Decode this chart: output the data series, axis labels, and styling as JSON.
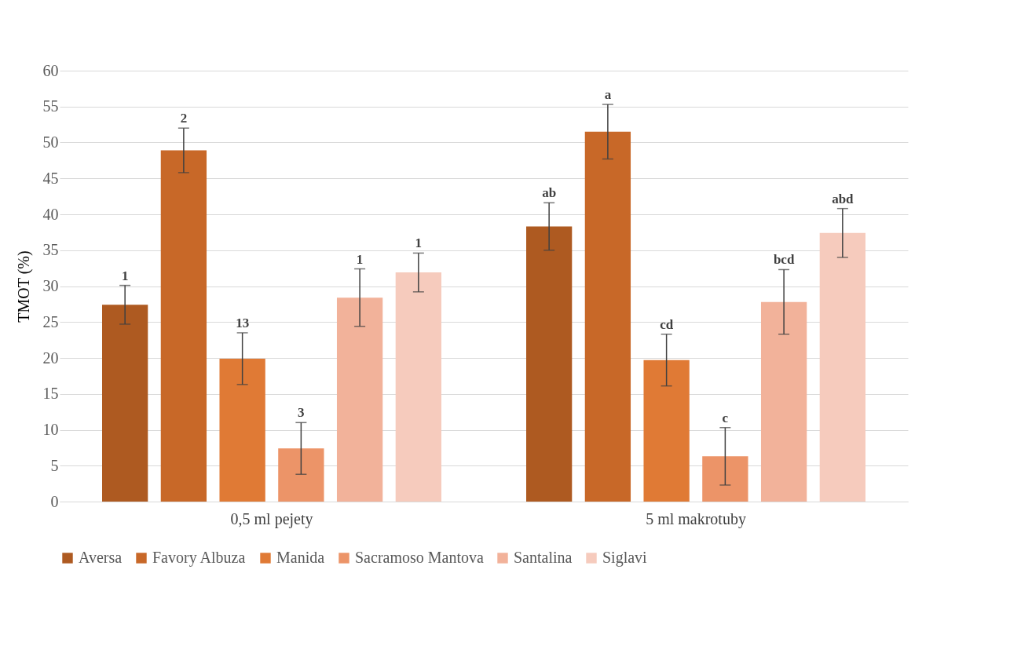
{
  "chart_data": {
    "type": "bar",
    "ylabel": "TMOT (%)",
    "categories": [
      "0,5 ml pejety",
      "5 ml makrotuby"
    ],
    "ylim": [
      0,
      60
    ],
    "yticks": [
      0,
      5,
      10,
      15,
      20,
      25,
      30,
      35,
      40,
      45,
      50,
      55,
      60
    ],
    "grid": "y",
    "legend": "bottom",
    "series": [
      {
        "name": "Aversa",
        "color": "#ae5a21",
        "values": [
          27.4,
          38.3
        ],
        "errors": [
          2.7,
          3.3
        ]
      },
      {
        "name": "Favory Albuza",
        "color": "#c86828",
        "values": [
          48.9,
          51.5
        ],
        "errors": [
          3.1,
          3.8
        ]
      },
      {
        "name": "Manida",
        "color": "#e07a35",
        "values": [
          19.9,
          19.7
        ],
        "errors": [
          3.6,
          3.6
        ]
      },
      {
        "name": "Sacramoso Mantova",
        "color": "#ec9468",
        "values": [
          7.4,
          6.3
        ],
        "errors": [
          3.6,
          4.0
        ]
      },
      {
        "name": "Santalina",
        "color": "#f2b29a",
        "values": [
          28.4,
          27.8
        ],
        "errors": [
          4.0,
          4.5
        ]
      },
      {
        "name": "Siglavi",
        "color": "#f6cbbd",
        "values": [
          31.9,
          37.4
        ],
        "errors": [
          2.7,
          3.4
        ]
      }
    ],
    "annotations": [
      "1",
      "2",
      "13",
      "3",
      "1",
      "1",
      "ab",
      "a",
      "cd",
      "c",
      "bcd",
      "abd"
    ]
  }
}
